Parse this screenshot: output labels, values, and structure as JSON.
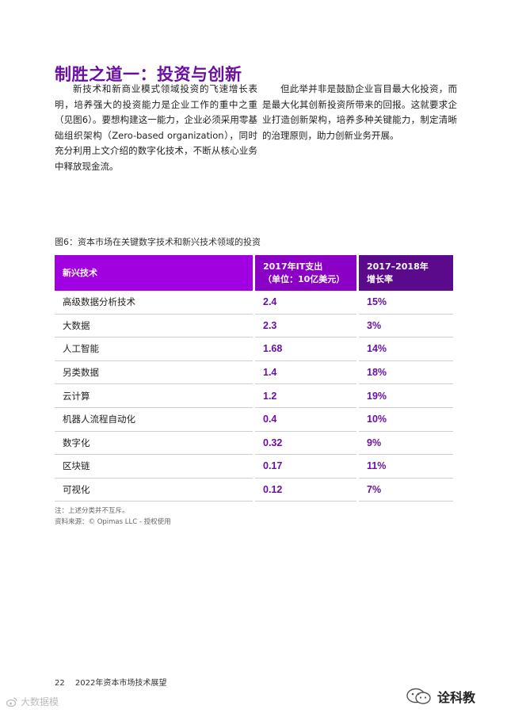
{
  "title": "制胜之道一：投资与创新",
  "paragraphs": {
    "left": "新技术和新商业模式领域投资的飞速增长表明，培养强大的投资能力是企业工作的重中之重（见图6）。要想构建这一能力，企业必须采用零基础组织架构（Zero-based organization），同时充分利用上文介绍的数字化技术，不断从核心业务中释放现金流。",
    "right": "但此举并非是鼓励企业盲目最大化投资，而是最大化其创新投资所带来的回报。这就要求企业打造创新架构，培养多种关键能力，制定清晰的治理原则，助力创新业务开展。"
  },
  "figure": {
    "caption": "图6：资本市场在关键数字技术和新兴技术领域的投资",
    "headers": {
      "col1": "新兴技术",
      "col2_line1": "2017年IT支出",
      "col2_line2": "（单位：10亿美元）",
      "col3_line1": "2017–2018年",
      "col3_line2": "增长率"
    },
    "rows": [
      {
        "name": "高级数据分析技术",
        "spend": "2.4",
        "growth": "15%"
      },
      {
        "name": "大数据",
        "spend": "2.3",
        "growth": "3%"
      },
      {
        "name": "人工智能",
        "spend": "1.68",
        "growth": "14%"
      },
      {
        "name": "另类数据",
        "spend": "1.4",
        "growth": "18%"
      },
      {
        "name": "云计算",
        "spend": "1.2",
        "growth": "19%"
      },
      {
        "name": "机器人流程自动化",
        "spend": "0.4",
        "growth": "10%"
      },
      {
        "name": "数字化",
        "spend": "0.32",
        "growth": "9%"
      },
      {
        "name": "区块链",
        "spend": "0.17",
        "growth": "11%"
      },
      {
        "name": "可视化",
        "spend": "0.12",
        "growth": "7%"
      }
    ],
    "note": "注：上述分类并不互斥。",
    "source": "资料来源：© Opimas LLC - 授权使用"
  },
  "footer": {
    "page_number": "22",
    "doc_title": "2022年资本市场技术展望"
  },
  "watermarks": {
    "left": "大数据模",
    "right": "诠科教",
    "left_icon": "weibo-icon",
    "right_icon": "wechat-icon"
  },
  "colors": {
    "accent": "#6b0fa3",
    "header_col1": "#a100e0",
    "header_col2": "#8a00c4",
    "header_col3": "#5c0a8c"
  }
}
